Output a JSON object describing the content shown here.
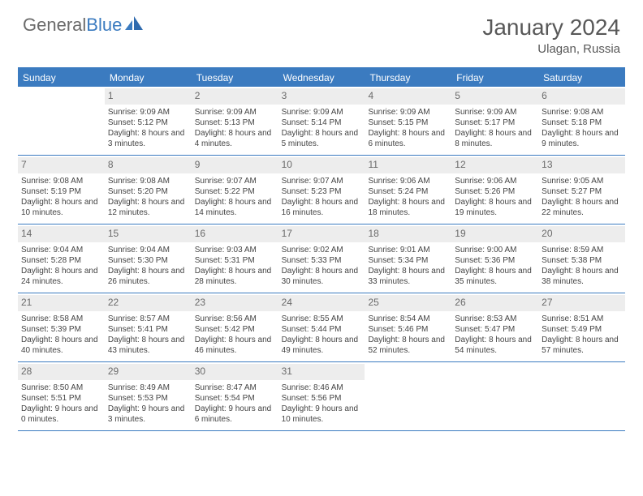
{
  "brand": {
    "part1": "General",
    "part2": "Blue"
  },
  "title": {
    "month": "January 2024",
    "location": "Ulagan, Russia"
  },
  "colors": {
    "header_bg": "#3b7bc0",
    "header_text": "#ffffff",
    "daynum_bg": "#ededed",
    "daynum_text": "#6a6a6a",
    "body_text": "#444444",
    "rule": "#3b7bc0",
    "logo_gray": "#6b6b6b",
    "logo_blue": "#3b7bc0"
  },
  "typography": {
    "month_fontsize": 28,
    "location_fontsize": 15,
    "dayheader_fontsize": 12,
    "cell_fontsize": 10,
    "daynum_fontsize": 12
  },
  "dayNames": [
    "Sunday",
    "Monday",
    "Tuesday",
    "Wednesday",
    "Thursday",
    "Friday",
    "Saturday"
  ],
  "weeks": [
    [
      null,
      {
        "n": "1",
        "sr": "Sunrise: 9:09 AM",
        "ss": "Sunset: 5:12 PM",
        "dl": "Daylight: 8 hours and 3 minutes."
      },
      {
        "n": "2",
        "sr": "Sunrise: 9:09 AM",
        "ss": "Sunset: 5:13 PM",
        "dl": "Daylight: 8 hours and 4 minutes."
      },
      {
        "n": "3",
        "sr": "Sunrise: 9:09 AM",
        "ss": "Sunset: 5:14 PM",
        "dl": "Daylight: 8 hours and 5 minutes."
      },
      {
        "n": "4",
        "sr": "Sunrise: 9:09 AM",
        "ss": "Sunset: 5:15 PM",
        "dl": "Daylight: 8 hours and 6 minutes."
      },
      {
        "n": "5",
        "sr": "Sunrise: 9:09 AM",
        "ss": "Sunset: 5:17 PM",
        "dl": "Daylight: 8 hours and 8 minutes."
      },
      {
        "n": "6",
        "sr": "Sunrise: 9:08 AM",
        "ss": "Sunset: 5:18 PM",
        "dl": "Daylight: 8 hours and 9 minutes."
      }
    ],
    [
      {
        "n": "7",
        "sr": "Sunrise: 9:08 AM",
        "ss": "Sunset: 5:19 PM",
        "dl": "Daylight: 8 hours and 10 minutes."
      },
      {
        "n": "8",
        "sr": "Sunrise: 9:08 AM",
        "ss": "Sunset: 5:20 PM",
        "dl": "Daylight: 8 hours and 12 minutes."
      },
      {
        "n": "9",
        "sr": "Sunrise: 9:07 AM",
        "ss": "Sunset: 5:22 PM",
        "dl": "Daylight: 8 hours and 14 minutes."
      },
      {
        "n": "10",
        "sr": "Sunrise: 9:07 AM",
        "ss": "Sunset: 5:23 PM",
        "dl": "Daylight: 8 hours and 16 minutes."
      },
      {
        "n": "11",
        "sr": "Sunrise: 9:06 AM",
        "ss": "Sunset: 5:24 PM",
        "dl": "Daylight: 8 hours and 18 minutes."
      },
      {
        "n": "12",
        "sr": "Sunrise: 9:06 AM",
        "ss": "Sunset: 5:26 PM",
        "dl": "Daylight: 8 hours and 19 minutes."
      },
      {
        "n": "13",
        "sr": "Sunrise: 9:05 AM",
        "ss": "Sunset: 5:27 PM",
        "dl": "Daylight: 8 hours and 22 minutes."
      }
    ],
    [
      {
        "n": "14",
        "sr": "Sunrise: 9:04 AM",
        "ss": "Sunset: 5:28 PM",
        "dl": "Daylight: 8 hours and 24 minutes."
      },
      {
        "n": "15",
        "sr": "Sunrise: 9:04 AM",
        "ss": "Sunset: 5:30 PM",
        "dl": "Daylight: 8 hours and 26 minutes."
      },
      {
        "n": "16",
        "sr": "Sunrise: 9:03 AM",
        "ss": "Sunset: 5:31 PM",
        "dl": "Daylight: 8 hours and 28 minutes."
      },
      {
        "n": "17",
        "sr": "Sunrise: 9:02 AM",
        "ss": "Sunset: 5:33 PM",
        "dl": "Daylight: 8 hours and 30 minutes."
      },
      {
        "n": "18",
        "sr": "Sunrise: 9:01 AM",
        "ss": "Sunset: 5:34 PM",
        "dl": "Daylight: 8 hours and 33 minutes."
      },
      {
        "n": "19",
        "sr": "Sunrise: 9:00 AM",
        "ss": "Sunset: 5:36 PM",
        "dl": "Daylight: 8 hours and 35 minutes."
      },
      {
        "n": "20",
        "sr": "Sunrise: 8:59 AM",
        "ss": "Sunset: 5:38 PM",
        "dl": "Daylight: 8 hours and 38 minutes."
      }
    ],
    [
      {
        "n": "21",
        "sr": "Sunrise: 8:58 AM",
        "ss": "Sunset: 5:39 PM",
        "dl": "Daylight: 8 hours and 40 minutes."
      },
      {
        "n": "22",
        "sr": "Sunrise: 8:57 AM",
        "ss": "Sunset: 5:41 PM",
        "dl": "Daylight: 8 hours and 43 minutes."
      },
      {
        "n": "23",
        "sr": "Sunrise: 8:56 AM",
        "ss": "Sunset: 5:42 PM",
        "dl": "Daylight: 8 hours and 46 minutes."
      },
      {
        "n": "24",
        "sr": "Sunrise: 8:55 AM",
        "ss": "Sunset: 5:44 PM",
        "dl": "Daylight: 8 hours and 49 minutes."
      },
      {
        "n": "25",
        "sr": "Sunrise: 8:54 AM",
        "ss": "Sunset: 5:46 PM",
        "dl": "Daylight: 8 hours and 52 minutes."
      },
      {
        "n": "26",
        "sr": "Sunrise: 8:53 AM",
        "ss": "Sunset: 5:47 PM",
        "dl": "Daylight: 8 hours and 54 minutes."
      },
      {
        "n": "27",
        "sr": "Sunrise: 8:51 AM",
        "ss": "Sunset: 5:49 PM",
        "dl": "Daylight: 8 hours and 57 minutes."
      }
    ],
    [
      {
        "n": "28",
        "sr": "Sunrise: 8:50 AM",
        "ss": "Sunset: 5:51 PM",
        "dl": "Daylight: 9 hours and 0 minutes."
      },
      {
        "n": "29",
        "sr": "Sunrise: 8:49 AM",
        "ss": "Sunset: 5:53 PM",
        "dl": "Daylight: 9 hours and 3 minutes."
      },
      {
        "n": "30",
        "sr": "Sunrise: 8:47 AM",
        "ss": "Sunset: 5:54 PM",
        "dl": "Daylight: 9 hours and 6 minutes."
      },
      {
        "n": "31",
        "sr": "Sunrise: 8:46 AM",
        "ss": "Sunset: 5:56 PM",
        "dl": "Daylight: 9 hours and 10 minutes."
      },
      null,
      null,
      null
    ]
  ]
}
